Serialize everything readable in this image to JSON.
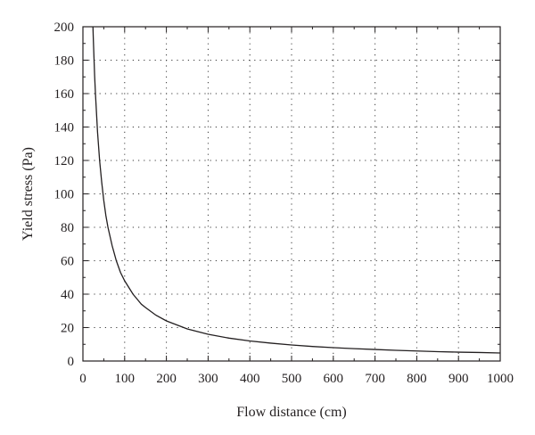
{
  "chart_data": {
    "type": "line",
    "title": "",
    "xlabel": "Flow distance (cm)",
    "ylabel": "Yield stress (Pa)",
    "xlim": [
      0,
      1000
    ],
    "ylim": [
      0,
      200
    ],
    "x_ticks": [
      0,
      100,
      200,
      300,
      400,
      500,
      600,
      700,
      800,
      900,
      1000
    ],
    "y_ticks": [
      0,
      20,
      40,
      60,
      80,
      100,
      120,
      140,
      160,
      180,
      200
    ],
    "x_tick_labels": [
      "0",
      "100",
      "200",
      "300",
      "400",
      "500",
      "600",
      "700",
      "800",
      "900",
      "1000"
    ],
    "y_tick_labels": [
      "0",
      "20",
      "40",
      "60",
      "80",
      "100",
      "120",
      "140",
      "160",
      "180",
      "200"
    ],
    "grid": true,
    "grid_style": "dotted",
    "series": [
      {
        "x": [
          24,
          25,
          28,
          30,
          35,
          40,
          45,
          50,
          55,
          60,
          70,
          80,
          90,
          100,
          110,
          120,
          130,
          140,
          150,
          175,
          200,
          250,
          300,
          350,
          400,
          450,
          500,
          550,
          600,
          650,
          700,
          750,
          800,
          850,
          900,
          950,
          1000
        ],
        "y": [
          200,
          192,
          171,
          160,
          137,
          120,
          107,
          96,
          87,
          80,
          69,
          60,
          53,
          48,
          44,
          40,
          37,
          34,
          32,
          27.4,
          24,
          19.2,
          16,
          13.7,
          12,
          10.7,
          9.6,
          8.7,
          8,
          7.4,
          6.9,
          6.4,
          6,
          5.6,
          5.3,
          5.1,
          4.8
        ],
        "color": "#231f20"
      }
    ]
  }
}
